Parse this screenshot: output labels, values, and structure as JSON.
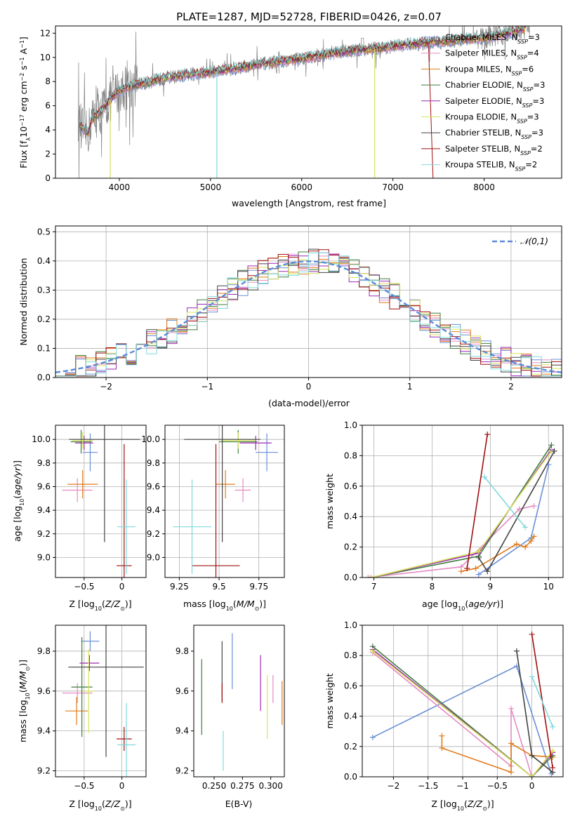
{
  "figure": {
    "title": "PLATE=1287, MJD=52728, FIBERID=0426, z=0.07"
  },
  "colors": {
    "Chabrier MILES": "#6a8fd6",
    "Salpeter MILES": "#e58ac4",
    "Kroupa MILES": "#e07b1a",
    "Chabrier ELODIE": "#3f7d3f",
    "Salpeter ELODIE": "#9b2ab5",
    "Kroupa ELODIE": "#d8e35a",
    "Chabrier STELIB": "#444444",
    "Salpeter STELIB": "#a01010",
    "Kroupa STELIB": "#7fd9dc",
    "data": "#808080"
  },
  "chart_data": [
    {
      "id": "spectrum",
      "type": "line",
      "title": "PLATE=1287, MJD=52728, FIBERID=0426, z=0.07",
      "xlabel": "wavelength [Angstrom, rest frame]",
      "ylabel": "Flux [f_λ 10^-17 erg cm^-2 s^-1 A^-1]",
      "xlim": [
        3300,
        8850
      ],
      "ylim": [
        0,
        12.6
      ],
      "xticks": [
        4000,
        5000,
        6000,
        7000,
        8000
      ],
      "yticks": [
        0,
        2,
        4,
        6,
        8,
        10,
        12
      ],
      "grid": false,
      "legend_position": "top-right",
      "legend": [
        {
          "label": "Chabrier MILES, N",
          "sub": "SSP",
          "suffix": "=3",
          "color": "#6a8fd6"
        },
        {
          "label": "Salpeter MILES, N",
          "sub": "SSP",
          "suffix": "=4",
          "color": "#e58ac4"
        },
        {
          "label": "Kroupa MILES, N",
          "sub": "SSP",
          "suffix": "=6",
          "color": "#e07b1a"
        },
        {
          "label": "Chabrier ELODIE, N",
          "sub": "SSP",
          "suffix": "=3",
          "color": "#3f7d3f"
        },
        {
          "label": "Salpeter ELODIE, N",
          "sub": "SSP",
          "suffix": "=3",
          "color": "#9b2ab5"
        },
        {
          "label": "Kroupa ELODIE, N",
          "sub": "SSP",
          "suffix": "=3",
          "color": "#d8e35a"
        },
        {
          "label": "Chabrier STELIB, N",
          "sub": "SSP",
          "suffix": "=3",
          "color": "#444444"
        },
        {
          "label": "Salpeter STELIB, N",
          "sub": "SSP",
          "suffix": "=2",
          "color": "#a01010"
        },
        {
          "label": "Kroupa STELIB, N",
          "sub": "SSP",
          "suffix": "=2",
          "color": "#7fd9dc"
        }
      ],
      "continuum": [
        [
          3550,
          4.6
        ],
        [
          3650,
          3.6
        ],
        [
          3700,
          4.9
        ],
        [
          3800,
          5.5
        ],
        [
          3900,
          6.5
        ],
        [
          4000,
          7.3
        ],
        [
          4100,
          7.6
        ],
        [
          4300,
          7.9
        ],
        [
          4500,
          8.3
        ],
        [
          4800,
          8.6
        ],
        [
          5000,
          8.8
        ],
        [
          5200,
          9.0
        ],
        [
          5500,
          9.4
        ],
        [
          5800,
          9.7
        ],
        [
          6000,
          9.9
        ],
        [
          6300,
          10.3
        ],
        [
          6600,
          10.6
        ],
        [
          6900,
          10.8
        ],
        [
          7200,
          11.1
        ],
        [
          7500,
          11.3
        ],
        [
          7800,
          11.5
        ],
        [
          8000,
          11.6
        ],
        [
          8300,
          12.1
        ],
        [
          8500,
          12.5
        ]
      ],
      "spikes": [
        {
          "x": 5070,
          "y": 0,
          "color": "#7fd9dc"
        },
        {
          "x": 6800,
          "y": 0,
          "color": "#d8e35a"
        },
        {
          "x": 3900,
          "y": 0,
          "color": "#d8e35a"
        }
      ]
    },
    {
      "id": "residuals",
      "type": "histogram",
      "xlabel": "(data-model)/error",
      "ylabel": "Normed distribution",
      "xlim": [
        -2.5,
        2.5
      ],
      "ylim": [
        0,
        0.52
      ],
      "xticks": [
        -2,
        -1,
        0,
        1,
        2
      ],
      "yticks": [
        0.0,
        0.1,
        0.2,
        0.3,
        0.4,
        0.5
      ],
      "grid": true,
      "legend_position": "top-right",
      "reference_curve": {
        "label": "𝒩(0,1)",
        "mean": 0,
        "sigma": 1,
        "color": "#5b8bd9",
        "style": "dashed"
      }
    },
    {
      "id": "age_vs_Z",
      "type": "errorbar",
      "xlabel": "Z [log10(Z/Z⊙)]",
      "ylabel": "age [log10(age/yr)]",
      "xlim": [
        -0.88,
        0.32
      ],
      "ylim": [
        8.83,
        10.12
      ],
      "xticks": [
        -0.5,
        0.0
      ],
      "yticks": [
        9.0,
        9.2,
        9.4,
        9.6,
        9.8,
        10.0
      ],
      "grid": true,
      "points": [
        {
          "model": "Chabrier MILES",
          "x": -0.42,
          "xerr": 0.1,
          "y": 9.89,
          "yerr": 0.16
        },
        {
          "model": "Salpeter MILES",
          "x": -0.59,
          "xerr": 0.2,
          "y": 9.57,
          "yerr": 0.1
        },
        {
          "model": "Kroupa MILES",
          "x": -0.52,
          "xerr": 0.2,
          "y": 9.62,
          "yerr": 0.12
        },
        {
          "model": "Chabrier ELODIE",
          "x": -0.54,
          "xerr": 0.14,
          "y": 9.98,
          "yerr": 0.1
        },
        {
          "model": "Salpeter ELODIE",
          "x": -0.5,
          "xerr": 0.12,
          "y": 9.97,
          "yerr": 0.06
        },
        {
          "model": "Kroupa ELODIE",
          "x": -0.52,
          "xerr": 0.14,
          "y": 9.99,
          "yerr": 0.07
        },
        {
          "model": "Chabrier STELIB",
          "x": -0.23,
          "xerr": 0.47,
          "y": 10.0,
          "yerr": 0.87
        },
        {
          "model": "Salpeter STELIB",
          "x": 0.03,
          "xerr": 0.1,
          "y": 8.93,
          "yerr": 1.03
        },
        {
          "model": "Kroupa STELIB",
          "x": 0.06,
          "xerr": 0.12,
          "y": 9.26,
          "yerr": 0.4
        }
      ]
    },
    {
      "id": "age_vs_mass",
      "type": "errorbar",
      "xlabel": "mass [log10(M/M⊙)]",
      "ylabel": "",
      "xlim": [
        9.16,
        9.91
      ],
      "ylim": [
        8.83,
        10.12
      ],
      "xticks": [
        9.25,
        9.5,
        9.75
      ],
      "yticks": [
        9.0,
        9.2,
        9.4,
        9.6,
        9.8,
        10.0
      ],
      "grid": true,
      "points": [
        {
          "model": "Chabrier MILES",
          "x": 9.8,
          "xerr": 0.07,
          "y": 9.89,
          "yerr": 0.16
        },
        {
          "model": "Salpeter MILES",
          "x": 9.65,
          "xerr": 0.05,
          "y": 9.57,
          "yerr": 0.1
        },
        {
          "model": "Kroupa MILES",
          "x": 9.54,
          "xerr": 0.06,
          "y": 9.62,
          "yerr": 0.12
        },
        {
          "model": "Chabrier ELODIE",
          "x": 9.62,
          "xerr": 0.12,
          "y": 9.98,
          "yerr": 0.1
        },
        {
          "model": "Salpeter ELODIE",
          "x": 9.73,
          "xerr": 0.1,
          "y": 9.97,
          "yerr": 0.06
        },
        {
          "model": "Kroupa ELODIE",
          "x": 9.62,
          "xerr": 0.11,
          "y": 9.99,
          "yerr": 0.07
        },
        {
          "model": "Chabrier STELIB",
          "x": 9.52,
          "xerr": 0.24,
          "y": 10.0,
          "yerr": 0.87
        },
        {
          "model": "Salpeter STELIB",
          "x": 9.48,
          "xerr": 0.15,
          "y": 8.93,
          "yerr": 1.03
        },
        {
          "model": "Kroupa STELIB",
          "x": 9.33,
          "xerr": 0.12,
          "y": 9.26,
          "yerr": 0.4
        }
      ]
    },
    {
      "id": "weight_vs_age",
      "type": "line",
      "xlabel": "age [log10(age/yr)]",
      "ylabel": "mass weight",
      "xlim": [
        6.8,
        10.25
      ],
      "ylim": [
        0.0,
        1.0
      ],
      "xticks": [
        7,
        8,
        9,
        10
      ],
      "yticks": [
        0.0,
        0.2,
        0.4,
        0.6,
        0.8,
        1.0
      ],
      "grid": true,
      "series": [
        {
          "model": "Chabrier MILES",
          "points": [
            [
              8.8,
              0.02
            ],
            [
              9.7,
              0.26
            ],
            [
              10.0,
              0.74
            ]
          ]
        },
        {
          "model": "Salpeter MILES",
          "points": [
            [
              6.9,
              0.0
            ],
            [
              8.5,
              0.07
            ],
            [
              9.5,
              0.45
            ],
            [
              9.75,
              0.47
            ]
          ]
        },
        {
          "model": "Kroupa MILES",
          "points": [
            [
              8.5,
              0.04
            ],
            [
              8.75,
              0.06
            ],
            [
              9.45,
              0.22
            ],
            [
              9.6,
              0.2
            ],
            [
              9.7,
              0.24
            ],
            [
              9.75,
              0.27
            ]
          ]
        },
        {
          "model": "Chabrier ELODIE",
          "points": [
            [
              6.95,
              0.0
            ],
            [
              8.8,
              0.14
            ],
            [
              10.05,
              0.87
            ]
          ]
        },
        {
          "model": "Salpeter ELODIE",
          "points": [
            [
              6.95,
              0.0
            ],
            [
              8.8,
              0.16
            ],
            [
              10.05,
              0.84
            ]
          ]
        },
        {
          "model": "Kroupa ELODIE",
          "points": [
            [
              6.95,
              0.0
            ],
            [
              8.8,
              0.17
            ],
            [
              10.05,
              0.83
            ]
          ]
        },
        {
          "model": "Chabrier STELIB",
          "points": [
            [
              8.8,
              0.13
            ],
            [
              8.95,
              0.04
            ],
            [
              10.1,
              0.83
            ]
          ]
        },
        {
          "model": "Salpeter STELIB",
          "points": [
            [
              8.6,
              0.06
            ],
            [
              8.95,
              0.94
            ]
          ]
        },
        {
          "model": "Kroupa STELIB",
          "points": [
            [
              8.9,
              0.66
            ],
            [
              9.6,
              0.33
            ]
          ]
        }
      ]
    },
    {
      "id": "mass_vs_Z",
      "type": "errorbar",
      "xlabel": "Z [log10(Z/Z⊙)]",
      "ylabel": "mass [log10(M/M⊙)]",
      "xlim": [
        -0.88,
        0.32
      ],
      "ylim": [
        9.17,
        9.93
      ],
      "xticks": [
        -0.5,
        0.0
      ],
      "yticks": [
        9.2,
        9.4,
        9.6,
        9.8
      ],
      "grid": true,
      "points": [
        {
          "model": "Chabrier MILES",
          "x": -0.42,
          "xerr": 0.12,
          "y": 9.85,
          "yerr": 0.05
        },
        {
          "model": "Salpeter MILES",
          "x": -0.59,
          "xerr": 0.2,
          "y": 9.59,
          "yerr": 0.05
        },
        {
          "model": "Kroupa MILES",
          "x": -0.6,
          "xerr": 0.15,
          "y": 9.5,
          "yerr": 0.07
        },
        {
          "model": "Chabrier ELODIE",
          "x": -0.53,
          "xerr": 0.14,
          "y": 9.62,
          "yerr": 0.25
        },
        {
          "model": "Salpeter ELODIE",
          "x": -0.43,
          "xerr": 0.13,
          "y": 9.74,
          "yerr": 0.04
        },
        {
          "model": "Kroupa ELODIE",
          "x": -0.44,
          "xerr": 0.08,
          "y": 9.6,
          "yerr": 0.21
        },
        {
          "model": "Chabrier STELIB",
          "x": -0.21,
          "xerr": 0.5,
          "y": 9.72,
          "yerr": 0.45
        },
        {
          "model": "Salpeter STELIB",
          "x": 0.03,
          "xerr": 0.1,
          "y": 9.36,
          "yerr": 0.06
        },
        {
          "model": "Kroupa STELIB",
          "x": 0.06,
          "xerr": 0.12,
          "y": 9.33,
          "yerr": 0.21
        }
      ]
    },
    {
      "id": "mass_vs_EBV",
      "type": "errorbar",
      "xlabel": "E(B-V)",
      "ylabel": "",
      "xlim": [
        0.232,
        0.312
      ],
      "ylim": [
        9.17,
        9.93
      ],
      "xticks": [
        0.25,
        0.275,
        0.3
      ],
      "xticklabels": [
        "0.250",
        "0.275",
        "0.300"
      ],
      "yticks": [
        9.2,
        9.4,
        9.6,
        9.8
      ],
      "grid": false,
      "points": [
        {
          "model": "Chabrier MILES",
          "x": 0.266,
          "y": 9.75,
          "yerr": 0.14
        },
        {
          "model": "Salpeter MILES",
          "x": 0.302,
          "y": 9.61,
          "yerr": 0.07
        },
        {
          "model": "Kroupa MILES",
          "x": 0.31,
          "y": 9.54,
          "yerr": 0.11
        },
        {
          "model": "Chabrier ELODIE",
          "x": 0.239,
          "y": 9.57,
          "yerr": 0.19
        },
        {
          "model": "Salpeter ELODIE",
          "x": 0.291,
          "y": 9.64,
          "yerr": 0.14
        },
        {
          "model": "Kroupa ELODIE",
          "x": 0.297,
          "y": 9.52,
          "yerr": 0.16
        },
        {
          "model": "Chabrier STELIB",
          "x": 0.257,
          "y": 9.7,
          "yerr": 0.15
        },
        {
          "model": "Salpeter STELIB",
          "x": 0.257,
          "y": 9.59,
          "yerr": 0.05
        },
        {
          "model": "Kroupa STELIB",
          "x": 0.258,
          "y": 9.3,
          "yerr": 0.1
        }
      ]
    },
    {
      "id": "weight_vs_Z",
      "type": "line",
      "xlabel": "Z [log10(Z/Z⊙)]",
      "ylabel": "mass weight",
      "xlim": [
        -2.45,
        0.45
      ],
      "ylim": [
        0.0,
        1.0
      ],
      "xticks": [
        -2.0,
        -1.5,
        -1.0,
        -0.5,
        0.0
      ],
      "yticks": [
        0.0,
        0.2,
        0.4,
        0.6,
        0.8,
        1.0
      ],
      "grid": true,
      "series": [
        {
          "model": "Chabrier MILES",
          "points": [
            [
              -2.3,
              0.26
            ],
            [
              -0.22,
              0.73
            ],
            [
              0.28,
              0.02
            ]
          ]
        },
        {
          "model": "Salpeter MILES",
          "points": [
            [
              -2.3,
              0.82
            ],
            [
              -0.3,
              0.07
            ],
            [
              -0.3,
              0.45
            ],
            [
              0.0,
              0.0
            ],
            [
              0.3,
              0.16
            ]
          ]
        },
        {
          "model": "Kroupa MILES",
          "points": [
            [
              -1.3,
              0.27
            ],
            [
              -1.3,
              0.19
            ],
            [
              -0.3,
              0.03
            ],
            [
              -0.3,
              0.22
            ],
            [
              0.0,
              0.14
            ],
            [
              0.3,
              0.13
            ]
          ]
        },
        {
          "model": "Chabrier ELODIE",
          "points": [
            [
              -2.3,
              0.86
            ],
            [
              0.0,
              0.0
            ],
            [
              0.3,
              0.14
            ]
          ]
        },
        {
          "model": "Salpeter ELODIE",
          "points": [
            [
              -2.3,
              0.84
            ],
            [
              0.0,
              0.0
            ],
            [
              0.3,
              0.16
            ]
          ]
        },
        {
          "model": "Kroupa ELODIE",
          "points": [
            [
              -2.3,
              0.83
            ],
            [
              0.0,
              0.0
            ],
            [
              0.3,
              0.17
            ]
          ]
        },
        {
          "model": "Chabrier STELIB",
          "points": [
            [
              -0.22,
              0.83
            ],
            [
              0.0,
              0.14
            ],
            [
              0.3,
              0.03
            ]
          ]
        },
        {
          "model": "Salpeter STELIB",
          "points": [
            [
              0.0,
              0.94
            ],
            [
              0.3,
              0.06
            ]
          ]
        },
        {
          "model": "Kroupa STELIB",
          "points": [
            [
              0.0,
              0.66
            ],
            [
              0.3,
              0.33
            ]
          ]
        }
      ]
    }
  ]
}
